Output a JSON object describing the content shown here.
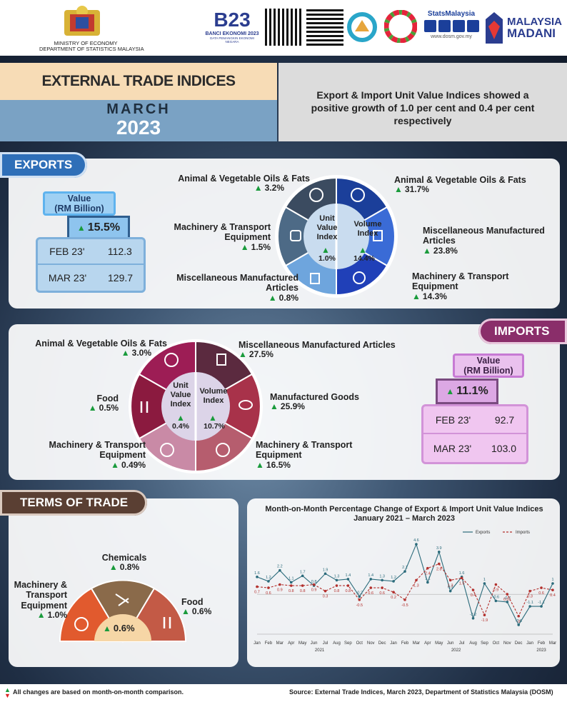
{
  "header": {
    "ministry_line1": "MINISTRY OF ECONOMY",
    "ministry_line2": "DEPARTMENT OF STATISTICS MALAYSIA",
    "census_title": "B23",
    "census_sub": "BANCI EKONOMI 2023",
    "census_tag": "DATA PEMANGKIN EKONOMI NEGARA",
    "stats_brand": "StatsMalaysia",
    "stats_url": "www.dosm.gov.my",
    "madani_1": "MALAYSIA",
    "madani_2": "MADANI"
  },
  "title": {
    "main": "EXTERNAL TRADE INDICES",
    "month": "MARCH",
    "year": "2023",
    "headline": "Export & Import Unit Value Indices showed a positive growth of 1.0 per cent and 0.4 per cent respectively"
  },
  "exports": {
    "tab": "EXPORTS",
    "value_title": "Value\n(RM Billion)",
    "value_change": "15.5%",
    "rows": [
      {
        "label": "FEB 23'",
        "value": "112.3"
      },
      {
        "label": "MAR 23'",
        "value": "129.7"
      }
    ],
    "unit_value": {
      "label": "Unit Value Index",
      "change": "1.0%"
    },
    "volume": {
      "label": "Volume Index",
      "change": "14.4%"
    },
    "left": [
      {
        "label": "Animal & Vegetable Oils & Fats",
        "change": "3.2%"
      },
      {
        "label": "Machinery & Transport Equipment",
        "change": "1.5%"
      },
      {
        "label": "Miscellaneous Manufactured Articles",
        "change": "0.8%"
      }
    ],
    "right": [
      {
        "label": "Animal & Vegetable Oils & Fats",
        "change": "31.7%"
      },
      {
        "label": "Miscellaneous Manufactured Articles",
        "change": "23.8%"
      },
      {
        "label": "Machinery & Transport Equipment",
        "change": "14.3%"
      }
    ]
  },
  "imports": {
    "tab": "IMPORTS",
    "value_title": "Value\n(RM Billion)",
    "value_change": "11.1%",
    "rows": [
      {
        "label": "FEB 23'",
        "value": "92.7"
      },
      {
        "label": "MAR 23'",
        "value": "103.0"
      }
    ],
    "unit_value": {
      "label": "Unit Value Index",
      "change": "0.4%"
    },
    "volume": {
      "label": "Volume Index",
      "change": "10.7%"
    },
    "left": [
      {
        "label": "Animal & Vegetable Oils & Fats",
        "change": "3.0%"
      },
      {
        "label": "Food",
        "change": "0.5%"
      },
      {
        "label": "Machinery & Transport Equipment",
        "change": "0.49%"
      }
    ],
    "right": [
      {
        "label": "Miscellaneous Manufactured Articles",
        "change": "27.5%"
      },
      {
        "label": "Manufactured Goods",
        "change": "25.9%"
      },
      {
        "label": "Machinery & Transport Equipment",
        "change": "16.5%"
      }
    ]
  },
  "tot": {
    "tab": "TERMS OF TRADE",
    "center": "0.6%",
    "items": [
      {
        "label": "Machinery & Transport Equipment",
        "change": "1.0%"
      },
      {
        "label": "Chemicals",
        "change": "0.8%"
      },
      {
        "label": "Food",
        "change": "0.6%"
      }
    ]
  },
  "footer": {
    "note": "All changes are based on month-on-month comparison.",
    "source": "Source: External Trade Indices, March 2023, Department of Statistics Malaysia (DOSM)"
  },
  "colors": {
    "export_dark": "#1b3f9a",
    "export_mid": "#3a6bd6",
    "export_light": "#6ea5dd",
    "export_gray": "#4d6a86",
    "import_dark": "#8b1a3f",
    "import_mid": "#a8324a",
    "import_light": "#c98aa6",
    "tot_orange": "#e15a2e",
    "tot_brown": "#8a6a4a",
    "tot_rust": "#c35a46"
  },
  "chart_data": {
    "type": "line",
    "title": "Month-on-Month Percentage Change of Export & Import Unit Value Indices January 2021 – March 2023",
    "categories": [
      "Jan",
      "Feb",
      "Mar",
      "Apr",
      "May",
      "Jun",
      "Jul",
      "Aug",
      "Sep",
      "Oct",
      "Nov",
      "Dec",
      "Jan",
      "Feb",
      "Mar",
      "Apr",
      "May",
      "Jun",
      "Jul",
      "Aug",
      "Sep",
      "Oct",
      "Nov",
      "Dec",
      "Jan",
      "Feb",
      "Mar"
    ],
    "year_labels": [
      "2021",
      "2022",
      "2023"
    ],
    "series": [
      {
        "name": "Exports",
        "color": "#2b6b7b",
        "values": [
          1.6,
          1.2,
          2.2,
          1.1,
          1.7,
          0.8,
          1.9,
          1.3,
          1.4,
          -0.2,
          1.4,
          1.3,
          1.2,
          2.1,
          4.6,
          1.1,
          3.9,
          0.3,
          1.6,
          -2.2,
          1.0,
          -0.6,
          -0.7,
          -2.8,
          -1.1,
          -1.1,
          1.0
        ]
      },
      {
        "name": "Imports",
        "color": "#b3302d",
        "values": [
          0.7,
          0.6,
          0.9,
          0.8,
          0.8,
          0.9,
          0.3,
          0.8,
          0.8,
          -0.5,
          0.6,
          0.6,
          0.2,
          -0.5,
          1.3,
          2.4,
          2.8,
          1.3,
          1.5,
          0.4,
          -1.9,
          0.9,
          0.01,
          -2.0,
          0.3,
          0.6,
          0.4
        ]
      }
    ],
    "series_labels": [
      "Exports",
      "Imports"
    ],
    "ylim": [
      -3,
      5
    ]
  }
}
